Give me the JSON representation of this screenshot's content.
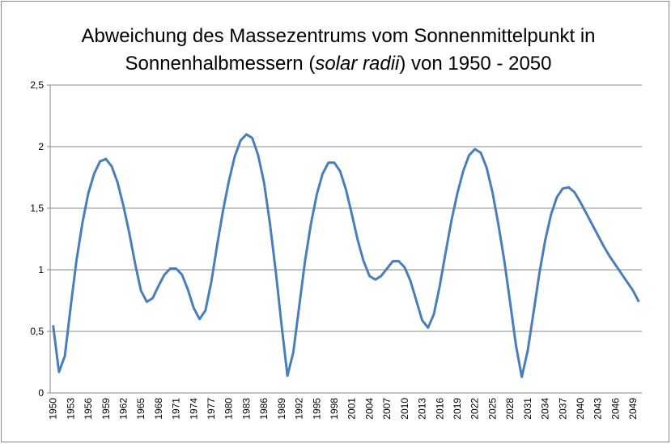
{
  "chart_data": {
    "type": "line",
    "title": [
      "Abweichung des Massezentrums vom Sonnenmittelpunkt in",
      "Sonnenhalbmessern (",
      "solar radii",
      ") von 1950 - 2050"
    ],
    "categories": [
      "1950",
      null,
      null,
      "1953",
      null,
      null,
      "1956",
      null,
      null,
      "1959",
      null,
      null,
      "1962",
      null,
      null,
      "1965",
      null,
      null,
      "1968",
      null,
      null,
      "1971",
      null,
      null,
      "1974",
      null,
      null,
      "1977",
      null,
      null,
      "1980",
      null,
      null,
      "1983",
      null,
      null,
      "1986",
      null,
      null,
      "1989",
      null,
      null,
      "1992",
      null,
      null,
      "1995",
      null,
      null,
      "1998",
      null,
      null,
      "2001",
      null,
      null,
      "2004",
      null,
      null,
      "2007",
      null,
      null,
      "2010",
      null,
      null,
      "2013",
      null,
      null,
      "2016",
      null,
      null,
      "2019",
      null,
      null,
      "2022",
      null,
      null,
      "2025",
      null,
      null,
      "2028",
      null,
      null,
      "2031",
      null,
      null,
      "2034",
      null,
      null,
      "2037",
      null,
      null,
      "2040",
      null,
      null,
      "2043",
      null,
      null,
      "2046",
      null,
      null,
      "2049",
      null
    ],
    "values": [
      0.55,
      0.17,
      0.3,
      0.7,
      1.08,
      1.38,
      1.62,
      1.78,
      1.88,
      1.9,
      1.84,
      1.71,
      1.52,
      1.3,
      1.05,
      0.83,
      0.74,
      0.77,
      0.87,
      0.96,
      1.01,
      1.01,
      0.96,
      0.84,
      0.69,
      0.6,
      0.67,
      0.9,
      1.2,
      1.48,
      1.72,
      1.92,
      2.05,
      2.1,
      2.07,
      1.93,
      1.71,
      1.38,
      0.99,
      0.55,
      0.14,
      0.33,
      0.7,
      1.07,
      1.37,
      1.61,
      1.78,
      1.87,
      1.87,
      1.8,
      1.65,
      1.45,
      1.24,
      1.07,
      0.95,
      0.92,
      0.95,
      1.01,
      1.07,
      1.07,
      1.02,
      0.91,
      0.75,
      0.59,
      0.53,
      0.64,
      0.87,
      1.14,
      1.4,
      1.62,
      1.8,
      1.93,
      1.98,
      1.95,
      1.83,
      1.63,
      1.37,
      1.08,
      0.74,
      0.39,
      0.13,
      0.34,
      0.65,
      0.97,
      1.24,
      1.45,
      1.59,
      1.66,
      1.67,
      1.63,
      1.55,
      1.46,
      1.37,
      1.28,
      1.19,
      1.11,
      1.04,
      0.97,
      0.9,
      0.83,
      0.74
    ],
    "color": "#4a7ebb",
    "ylim": [
      0,
      2.5
    ],
    "yticks": [
      0,
      {
        "value": 0.5,
        "label": "0,5"
      },
      1,
      {
        "value": 1.5,
        "label": "1,5"
      },
      2,
      {
        "value": 2.5,
        "label": "2,5"
      }
    ],
    "grid": true
  }
}
